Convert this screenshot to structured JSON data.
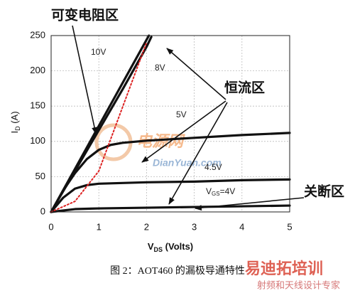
{
  "chart_data": {
    "type": "line",
    "ylabel": [
      "I",
      "D",
      " (A)"
    ],
    "xlabel": [
      "V",
      "DS",
      " (Volts)"
    ],
    "xlim": [
      0,
      5
    ],
    "ylim": [
      0,
      250
    ],
    "xticks": [
      0,
      1,
      2,
      3,
      4,
      5
    ],
    "yticks": [
      0,
      50,
      100,
      150,
      200,
      250
    ],
    "grid": true,
    "series": [
      {
        "name": "10V",
        "color": "#111111",
        "style": "solid",
        "x": [
          0,
          0.5,
          1,
          1.5,
          2,
          2.05
        ],
        "values": [
          0,
          61,
          122,
          183,
          244,
          250
        ]
      },
      {
        "name": "8V",
        "color": "#111111",
        "style": "solid",
        "x": [
          0,
          0.5,
          1,
          1.5,
          2,
          2.1
        ],
        "values": [
          0,
          58,
          116,
          174,
          234,
          248
        ]
      },
      {
        "name": "5V",
        "color": "#111111",
        "style": "solid",
        "x": [
          0,
          0.25,
          0.5,
          0.75,
          1,
          1.25,
          1.5,
          2,
          3,
          4,
          5
        ],
        "values": [
          0,
          30,
          55,
          75,
          88,
          95,
          98,
          101,
          105,
          109,
          112
        ]
      },
      {
        "name": "4.5V",
        "color": "#111111",
        "style": "solid",
        "x": [
          0,
          0.25,
          0.5,
          0.75,
          1,
          1.5,
          2,
          3,
          4,
          5
        ],
        "values": [
          0,
          20,
          33,
          38,
          40,
          41,
          42,
          43,
          45,
          46
        ]
      },
      {
        "name": [
          "V",
          "GS",
          "=4V"
        ],
        "color": "#111111",
        "style": "solid",
        "x": [
          0,
          0.5,
          1,
          2,
          3,
          4,
          5
        ],
        "values": [
          0,
          4,
          5,
          6,
          7,
          8,
          9
        ]
      },
      {
        "color": "#dd2222",
        "style": "dotted",
        "x": [
          0,
          0.5,
          1,
          1.5,
          2
        ],
        "values": [
          0,
          15,
          58,
          149,
          240
        ]
      }
    ],
    "annotations": [
      "可变电阻区",
      "恒流区",
      "关断区"
    ]
  },
  "caption": "图 2：AOT460 的漏极导通特性",
  "watermarks": [
    "电源网",
    "DianYuan.com",
    "易迪拓培训",
    "射频和天线设计专家"
  ]
}
